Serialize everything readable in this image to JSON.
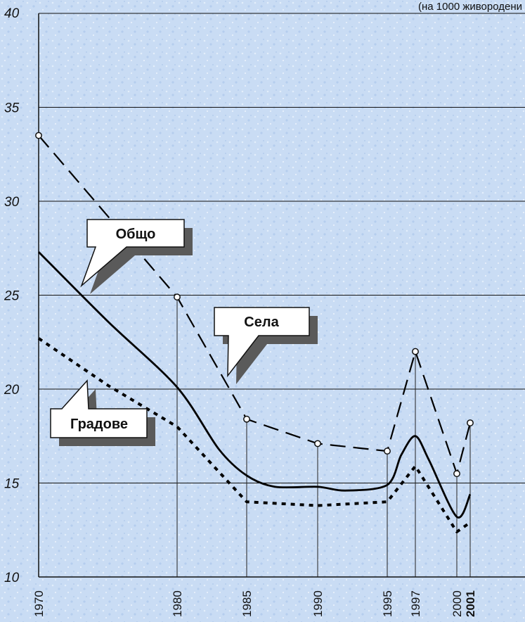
{
  "chart_data": {
    "type": "line",
    "unit_note": "(на 1000 живородени",
    "ylim": [
      10,
      40
    ],
    "y_ticks": [
      10,
      15,
      20,
      25,
      30,
      35,
      40
    ],
    "x_ticks": [
      {
        "label": "1970",
        "bold": false
      },
      {
        "label": "1980",
        "bold": false
      },
      {
        "label": "1985",
        "bold": false
      },
      {
        "label": "1990",
        "bold": false
      },
      {
        "label": "1995",
        "bold": false
      },
      {
        "label": "1997",
        "bold": false
      },
      {
        "label": "2000",
        "bold": false
      },
      {
        "label": "2001",
        "bold": true
      }
    ],
    "series": [
      {
        "name": "Села",
        "style": "long-dash",
        "color": "#000000",
        "values": [
          {
            "x": 1970,
            "y": 33.5
          },
          {
            "x": 1980,
            "y": 24.9
          },
          {
            "x": 1985,
            "y": 18.4
          },
          {
            "x": 1990,
            "y": 17.1
          },
          {
            "x": 1995,
            "y": 16.7
          },
          {
            "x": 1997,
            "y": 22.0
          },
          {
            "x": 2000,
            "y": 15.5
          },
          {
            "x": 2001,
            "y": 18.2
          }
        ]
      },
      {
        "name": "Общо",
        "style": "solid",
        "color": "#000000",
        "values": [
          {
            "x": 1970,
            "y": 27.3
          },
          {
            "x": 1975,
            "y": 23.6
          },
          {
            "x": 1980,
            "y": 20.1
          },
          {
            "x": 1983,
            "y": 16.8
          },
          {
            "x": 1985,
            "y": 15.4
          },
          {
            "x": 1987,
            "y": 14.8
          },
          {
            "x": 1990,
            "y": 14.8
          },
          {
            "x": 1992,
            "y": 14.6
          },
          {
            "x": 1995,
            "y": 14.9
          },
          {
            "x": 1996,
            "y": 16.5
          },
          {
            "x": 1997,
            "y": 17.5
          },
          {
            "x": 1998,
            "y": 16.2
          },
          {
            "x": 2000,
            "y": 13.2
          },
          {
            "x": 2001,
            "y": 14.4
          }
        ]
      },
      {
        "name": "Градове",
        "style": "dotted",
        "color": "#000000",
        "values": [
          {
            "x": 1970,
            "y": 22.7
          },
          {
            "x": 1975,
            "y": 20.2
          },
          {
            "x": 1980,
            "y": 18.0
          },
          {
            "x": 1985,
            "y": 14.0
          },
          {
            "x": 1990,
            "y": 13.8
          },
          {
            "x": 1995,
            "y": 14.0
          },
          {
            "x": 1997,
            "y": 15.9
          },
          {
            "x": 2000,
            "y": 12.4
          },
          {
            "x": 2001,
            "y": 12.9
          }
        ]
      }
    ],
    "callouts": [
      {
        "key": "obshto",
        "text": "Общо"
      },
      {
        "key": "sela",
        "text": "Села"
      },
      {
        "key": "gradove",
        "text": "Градове"
      }
    ],
    "grid": true,
    "background_color": "#c9dcf4"
  }
}
